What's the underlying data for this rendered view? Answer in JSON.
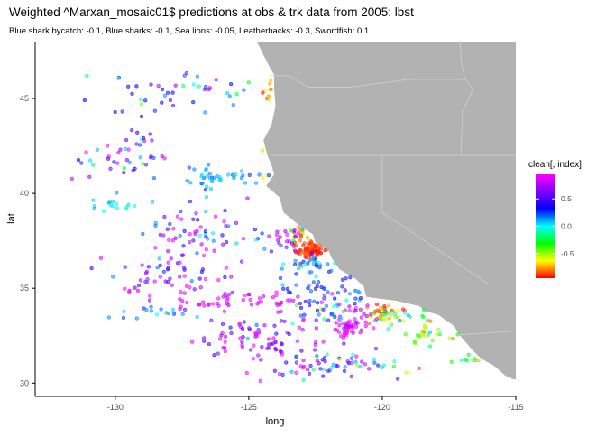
{
  "colors": {
    "land": "#b2b2b2",
    "border": "#cfcfcf",
    "axis": "#000000",
    "tick_label": "#4d4d4d"
  },
  "chart_data": {
    "type": "scatter",
    "title": "Weighted ^Marxan_mosaic01$ predictions at obs & trk data from 2005: lbst",
    "subtitle": "Blue shark bycatch: -0.1, Blue sharks: -0.1, Sea lions: -0.05, Leatherbacks: -0.3, Swordfish: 0.1",
    "xlabel": "long",
    "ylabel": "lat",
    "xlim": [
      -133.0,
      -115.0
    ],
    "ylim": [
      29.3,
      48.0
    ],
    "xticks": [
      -130,
      -125,
      -120,
      -115
    ],
    "yticks": [
      30,
      35,
      40,
      45
    ],
    "xtick_labels": [
      "-130",
      "-125",
      "-120",
      "-115"
    ],
    "ytick_labels": [
      "30",
      "35",
      "40",
      "45"
    ],
    "grid": false,
    "legend": {
      "title": "clean[, index]",
      "position": "right",
      "colorbar_ticks": [
        0.5,
        0.0,
        -0.5
      ],
      "colorbar_tick_labels": [
        "0.5",
        "0.0",
        "-0.5"
      ],
      "range": [
        -0.95,
        0.95
      ],
      "colormap": "rainbow (red = low, magenta = high)"
    },
    "point_style": {
      "alpha": 0.55,
      "shape": "circle"
    },
    "land_polygon": [
      [
        -124.55,
        48.35
      ],
      [
        -124.7,
        48.0
      ],
      [
        -124.45,
        47.3
      ],
      [
        -124.2,
        46.6
      ],
      [
        -124.05,
        46.25
      ],
      [
        -124.05,
        45.5
      ],
      [
        -124.0,
        44.6
      ],
      [
        -124.15,
        43.6
      ],
      [
        -124.45,
        42.8
      ],
      [
        -124.3,
        42.0
      ],
      [
        -124.15,
        41.5
      ],
      [
        -124.05,
        41.0
      ],
      [
        -124.35,
        40.4
      ],
      [
        -123.85,
        39.8
      ],
      [
        -123.7,
        39.0
      ],
      [
        -123.1,
        38.3
      ],
      [
        -122.6,
        37.85
      ],
      [
        -122.5,
        37.4
      ],
      [
        -122.0,
        36.95
      ],
      [
        -121.9,
        36.6
      ],
      [
        -121.6,
        36.0
      ],
      [
        -121.0,
        35.5
      ],
      [
        -120.7,
        35.1
      ],
      [
        -120.6,
        34.55
      ],
      [
        -120.1,
        34.45
      ],
      [
        -119.5,
        34.35
      ],
      [
        -118.6,
        34.05
      ],
      [
        -118.4,
        33.8
      ],
      [
        -117.9,
        33.6
      ],
      [
        -117.3,
        33.0
      ],
      [
        -117.15,
        32.6
      ],
      [
        -116.9,
        32.2
      ],
      [
        -116.6,
        31.7
      ],
      [
        -116.3,
        31.3
      ],
      [
        -115.8,
        30.9
      ],
      [
        -115.4,
        30.4
      ],
      [
        -115.1,
        30.2
      ],
      [
        -115.0,
        30.2
      ],
      [
        -115.0,
        48.35
      ]
    ],
    "borders": [
      [
        [
          -124.2,
          46.2
        ],
        [
          -123.5,
          46.2
        ],
        [
          -122.8,
          45.6
        ],
        [
          -121.2,
          45.6
        ],
        [
          -119.0,
          46.0
        ],
        [
          -116.9,
          46.0
        ]
      ],
      [
        [
          -124.2,
          42.0
        ],
        [
          -115.0,
          42.0
        ]
      ],
      [
        [
          -120.0,
          42.0
        ],
        [
          -120.0,
          39.0
        ],
        [
          -116.0,
          35.2
        ]
      ],
      [
        [
          -116.9,
          46.0
        ],
        [
          -116.6,
          45.5
        ],
        [
          -117.0,
          44.3
        ],
        [
          -117.05,
          42.0
        ]
      ],
      [
        [
          -117.1,
          48.35
        ],
        [
          -117.05,
          47.0
        ],
        [
          -116.9,
          46.0
        ]
      ],
      [
        [
          -117.1,
          32.55
        ],
        [
          -115.0,
          32.75
        ]
      ]
    ],
    "islands": [
      [
        [
          -123.0,
          48.7
        ],
        [
          -122.85,
          48.5
        ],
        [
          -123.05,
          48.35
        ],
        [
          -123.25,
          48.5
        ],
        [
          -123.0,
          48.7
        ]
      ],
      [
        [
          -122.75,
          48.2
        ],
        [
          -122.55,
          48.1
        ],
        [
          -122.45,
          48.3
        ],
        [
          -122.65,
          48.35
        ],
        [
          -122.75,
          48.2
        ]
      ]
    ],
    "clusters": [
      {
        "center": [
          -122.7,
          37.1
        ],
        "spread": [
          0.5,
          0.45
        ],
        "n": 75,
        "value": -0.9,
        "value_sd": 0.05,
        "seed": 11
      },
      {
        "center": [
          -123.0,
          38.0
        ],
        "spread": [
          0.5,
          0.5
        ],
        "n": 22,
        "value": -0.6,
        "value_sd": 0.2,
        "seed": 12
      },
      {
        "center": [
          -123.4,
          39.5
        ],
        "spread": [
          0.3,
          0.6
        ],
        "n": 18,
        "value": -0.5,
        "value_sd": 0.2,
        "seed": 13
      },
      {
        "center": [
          -124.1,
          41.8
        ],
        "spread": [
          0.25,
          1.2
        ],
        "n": 18,
        "value": -0.75,
        "value_sd": 0.15,
        "seed": 14
      },
      {
        "center": [
          -124.3,
          45.5
        ],
        "spread": [
          0.3,
          1.0
        ],
        "n": 12,
        "value": -0.7,
        "value_sd": 0.15,
        "seed": 15
      },
      {
        "center": [
          -120.1,
          33.6
        ],
        "spread": [
          0.6,
          0.4
        ],
        "n": 22,
        "value": -0.75,
        "value_sd": 0.15,
        "seed": 16
      },
      {
        "center": [
          -118.1,
          32.6
        ],
        "spread": [
          0.8,
          0.5
        ],
        "n": 28,
        "value": -0.4,
        "value_sd": 0.2,
        "seed": 17
      },
      {
        "center": [
          -119.6,
          33.6
        ],
        "spread": [
          0.8,
          0.5
        ],
        "n": 30,
        "value": -0.35,
        "value_sd": 0.3,
        "seed": 18
      },
      {
        "center": [
          -116.8,
          31.2
        ],
        "spread": [
          0.6,
          0.4
        ],
        "n": 12,
        "value": -0.3,
        "value_sd": 0.2,
        "seed": 19
      },
      {
        "center": [
          -121.3,
          32.9
        ],
        "spread": [
          0.45,
          0.45
        ],
        "n": 30,
        "value": 0.88,
        "value_sd": 0.05,
        "seed": 21
      },
      {
        "center": [
          -121.0,
          33.5
        ],
        "spread": [
          0.6,
          0.6
        ],
        "n": 24,
        "value": 0.8,
        "value_sd": 0.1,
        "seed": 22
      },
      {
        "center": [
          -126.5,
          40.8
        ],
        "spread": [
          0.7,
          0.5
        ],
        "n": 28,
        "value": 0.1,
        "value_sd": 0.05,
        "seed": 23
      },
      {
        "center": [
          -125.2,
          40.9
        ],
        "spread": [
          0.4,
          0.3
        ],
        "n": 12,
        "value": 0.15,
        "value_sd": 0.05,
        "seed": 24
      },
      {
        "center": [
          -130.0,
          39.3
        ],
        "spread": [
          1.0,
          0.3
        ],
        "n": 16,
        "value": 0.05,
        "value_sd": 0.05,
        "seed": 25
      },
      {
        "center": [
          -122.8,
          36.3
        ],
        "spread": [
          0.8,
          0.4
        ],
        "n": 25,
        "value": 0.15,
        "value_sd": 0.15,
        "seed": 26
      },
      {
        "center": [
          -122.3,
          35.0
        ],
        "spread": [
          1.2,
          0.6
        ],
        "n": 40,
        "value": 0.25,
        "value_sd": 0.1,
        "seed": 27
      },
      {
        "center": [
          -123.8,
          37.5
        ],
        "spread": [
          0.6,
          0.6
        ],
        "n": 20,
        "value": 0.65,
        "value_sd": 0.25,
        "seed": 28
      },
      {
        "center": [
          -124.8,
          34.4
        ],
        "spread": [
          1.5,
          0.35
        ],
        "n": 30,
        "value": 0.85,
        "value_sd": 0.07,
        "seed": 29
      },
      {
        "center": [
          -128.5,
          33.6
        ],
        "spread": [
          1.2,
          0.4
        ],
        "n": 16,
        "value": 0.15,
        "value_sd": 0.05,
        "seed": 30
      },
      {
        "center": [
          -126.5,
          34.2
        ],
        "spread": [
          1.0,
          0.35
        ],
        "n": 16,
        "value": 0.85,
        "value_sd": 0.05,
        "seed": 31
      },
      {
        "center": [
          -121.0,
          31.0
        ],
        "spread": [
          1.6,
          0.55
        ],
        "n": 30,
        "value": 0.3,
        "value_sd": 0.4,
        "seed": 32
      },
      {
        "center": [
          -127.6,
          45.5
        ],
        "spread": [
          3.0,
          1.3
        ],
        "n": 45,
        "value": 0.25,
        "value_sd": 0.3,
        "seed": 33
      },
      {
        "center": [
          -129.6,
          42.0
        ],
        "spread": [
          1.5,
          1.5
        ],
        "n": 45,
        "value": 0.45,
        "value_sd": 0.35,
        "seed": 34
      },
      {
        "center": [
          -126.6,
          38.0
        ],
        "spread": [
          1.8,
          1.4
        ],
        "n": 60,
        "value": 0.5,
        "value_sd": 0.35,
        "seed": 35
      },
      {
        "center": [
          -128.0,
          35.8
        ],
        "spread": [
          2.0,
          1.2
        ],
        "n": 60,
        "value": 0.7,
        "value_sd": 0.25,
        "seed": 36
      },
      {
        "center": [
          -124.6,
          32.4
        ],
        "spread": [
          2.0,
          1.0
        ],
        "n": 80,
        "value": 0.75,
        "value_sd": 0.25,
        "seed": 37
      },
      {
        "center": [
          -122.6,
          30.9
        ],
        "spread": [
          1.4,
          0.6
        ],
        "n": 35,
        "value": 0.55,
        "value_sd": 0.35,
        "seed": 38
      },
      {
        "center": [
          -122.0,
          33.8
        ],
        "spread": [
          1.1,
          0.8
        ],
        "n": 40,
        "value": 0.35,
        "value_sd": 0.45,
        "seed": 39
      }
    ]
  }
}
